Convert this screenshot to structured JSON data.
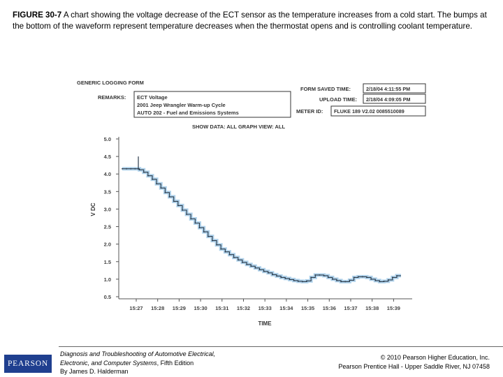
{
  "caption": {
    "figure_label": "FIGURE 30-7",
    "text": " A chart showing the voltage decrease of the ECT sensor as the temperature increases from a cold start. The bumps at the bottom of the waveform represent temperature decreases when the thermostat opens and is controlling coolant temperature."
  },
  "form": {
    "title": "GENERIC LOGGING FORM",
    "remarks_label": "REMARKS:",
    "remarks_lines": [
      "ECT Voltage",
      "2001 Jeep Wrangler Warm-up Cycle",
      "AUTO 202 - Fuel and Emissions Systems"
    ],
    "saved_label": "FORM SAVED TIME:",
    "saved_value": "2/18/04 4:11:55 PM",
    "upload_label": "UPLOAD TIME:",
    "upload_value": "2/18/04 4:09:05 PM",
    "meter_label": "METER ID:",
    "meter_value": "FLUKE 189 V2.02 0085510089",
    "show_data": "SHOW DATA: ALL GRAPH VIEW: ALL"
  },
  "chart_data": {
    "type": "line",
    "ylabel": "V DC",
    "xlabel": "TIME",
    "ylim": [
      0.5,
      5.0
    ],
    "y_ticks": [
      "5.0",
      "4.5",
      "4.0",
      "3.5",
      "3.0",
      "2.5",
      "2.0",
      "1.5",
      "1.0",
      "0.5"
    ],
    "x_ticks": [
      "15:27",
      "15:28",
      "15:29",
      "15:30",
      "15:31",
      "15:32",
      "15:33",
      "15:34",
      "15:35",
      "15:36",
      "15:37",
      "15:38",
      "15:39"
    ],
    "series": [
      {
        "x_minutes": [
          0.0,
          0.2,
          0.4,
          0.6,
          0.8,
          1.0,
          1.2,
          1.4,
          1.6,
          1.8,
          2.0,
          2.2,
          2.4,
          2.6,
          2.8,
          3.0,
          3.2,
          3.4,
          3.6,
          3.8,
          4.0,
          4.2,
          4.4,
          4.6,
          4.8,
          5.0,
          5.2,
          5.4,
          5.6,
          5.8,
          6.0,
          6.2,
          6.4,
          6.6,
          6.8,
          7.0,
          7.2,
          7.4,
          7.6,
          7.8,
          8.0,
          8.2,
          8.4,
          8.6,
          8.8,
          9.0,
          9.2,
          9.4,
          9.6,
          9.8,
          10.0,
          10.2,
          10.4,
          10.6,
          10.8,
          11.0,
          11.2,
          11.4,
          11.6,
          11.8,
          12.0,
          12.2,
          12.4,
          12.6,
          12.8
        ],
        "values": [
          4.15,
          4.15,
          4.15,
          4.15,
          4.12,
          4.05,
          3.95,
          3.85,
          3.72,
          3.6,
          3.47,
          3.35,
          3.22,
          3.1,
          2.97,
          2.85,
          2.72,
          2.6,
          2.47,
          2.35,
          2.22,
          2.1,
          1.98,
          1.86,
          1.78,
          1.7,
          1.62,
          1.55,
          1.48,
          1.42,
          1.37,
          1.32,
          1.27,
          1.22,
          1.18,
          1.13,
          1.09,
          1.05,
          1.02,
          0.99,
          0.96,
          0.94,
          0.93,
          0.95,
          1.05,
          1.12,
          1.12,
          1.1,
          1.05,
          1.0,
          0.96,
          0.93,
          0.93,
          0.97,
          1.05,
          1.07,
          1.07,
          1.05,
          1.0,
          0.96,
          0.93,
          0.94,
          0.98,
          1.05,
          1.1
        ]
      }
    ],
    "spike": {
      "x_minutes": 0.75,
      "values": [
        4.12,
        4.5
      ]
    }
  },
  "footer": {
    "logo": "PEARSON",
    "book_line1": "Diagnosis and Troubleshooting of Automotive Electrical,",
    "book_line2": "Electronic, and Computer Systems",
    "book_line2_suffix": ", Fifth Edition",
    "book_line3": "By James D. Halderman",
    "copyright_line1": "© 2010 Pearson Higher Education, Inc.",
    "copyright_line2": "Pearson Prentice Hall - Upper Saddle River, NJ 07458"
  }
}
